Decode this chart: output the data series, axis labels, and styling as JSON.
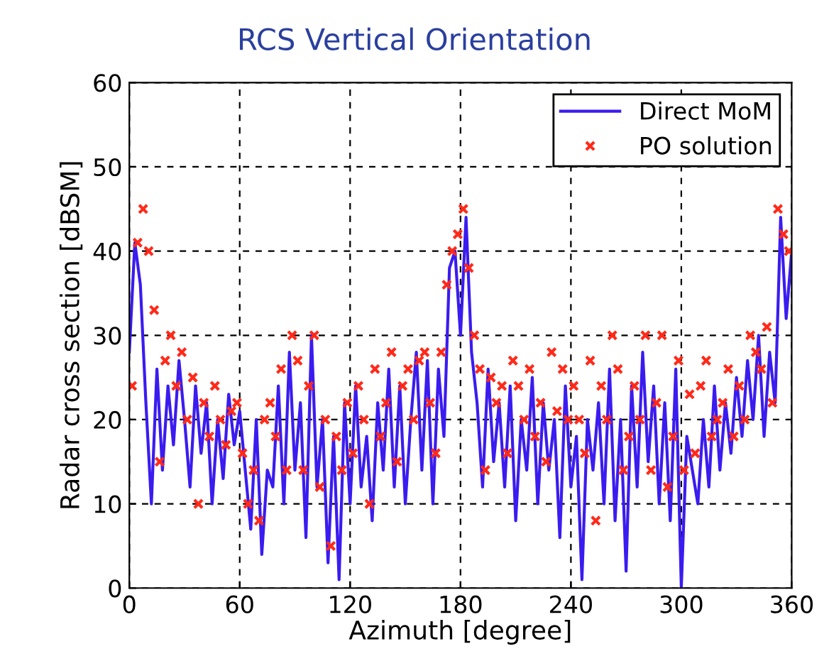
{
  "chart_data": {
    "type": "line",
    "title": "RCS Vertical Orientation",
    "xlabel": "Azimuth [degree]",
    "ylabel": "Radar cross section [dBSM]",
    "xlim": [
      0,
      360
    ],
    "xticks": [
      0,
      60,
      120,
      180,
      240,
      300,
      360
    ],
    "ylim": [
      0,
      60
    ],
    "yticks": [
      0,
      10,
      20,
      30,
      40,
      50,
      60
    ],
    "grid": true,
    "legend": "top right",
    "series": [
      {
        "name": "Direct MoM",
        "color": "#3a1cf0",
        "line_style": "solid",
        "x": [
          0,
          3,
          6,
          9,
          12,
          15,
          18,
          21,
          24,
          27,
          30,
          33,
          36,
          39,
          42,
          45,
          48,
          51,
          54,
          57,
          60,
          63,
          66,
          69,
          72,
          75,
          78,
          81,
          84,
          87,
          90,
          93,
          96,
          99,
          102,
          105,
          108,
          111,
          114,
          117,
          120,
          123,
          126,
          129,
          132,
          135,
          138,
          141,
          144,
          147,
          150,
          153,
          156,
          159,
          162,
          165,
          168,
          171,
          174,
          177,
          180,
          183,
          186,
          189,
          192,
          195,
          198,
          201,
          204,
          207,
          210,
          213,
          216,
          219,
          222,
          225,
          228,
          231,
          234,
          237,
          240,
          243,
          246,
          249,
          252,
          255,
          258,
          261,
          264,
          267,
          270,
          273,
          276,
          279,
          282,
          285,
          288,
          291,
          294,
          297,
          300,
          303,
          306,
          309,
          312,
          315,
          318,
          321,
          324,
          327,
          330,
          333,
          336,
          339,
          342,
          345,
          348,
          351,
          354,
          357,
          360
        ],
        "values": [
          28,
          41,
          36,
          22,
          10,
          26,
          14,
          24,
          17,
          27,
          20,
          12,
          24,
          16,
          22,
          10,
          20,
          13,
          23,
          17,
          21,
          14,
          7,
          20,
          4,
          14,
          12,
          24,
          10,
          28,
          14,
          22,
          6,
          30,
          12,
          20,
          3,
          18,
          1,
          22,
          10,
          24,
          12,
          18,
          8,
          22,
          14,
          26,
          12,
          24,
          10,
          20,
          28,
          14,
          27,
          10,
          26,
          18,
          38,
          40,
          30,
          44,
          28,
          22,
          12,
          26,
          15,
          22,
          12,
          24,
          8,
          20,
          14,
          25,
          10,
          22,
          14,
          20,
          6,
          24,
          12,
          18,
          1,
          20,
          14,
          22,
          10,
          26,
          8,
          20,
          2,
          24,
          12,
          28,
          15,
          24,
          10,
          22,
          8,
          26,
          0,
          18,
          14,
          10,
          20,
          12,
          24,
          14,
          22,
          16,
          25,
          18,
          27,
          20,
          30,
          18,
          28,
          22,
          44,
          32,
          40
        ]
      },
      {
        "name": "PO solution",
        "type": "scatter",
        "color": "#ff2a1a",
        "marker": "cross",
        "x": [
          1.5,
          4.5,
          7.5,
          10.5,
          13.5,
          16.5,
          19.5,
          22.5,
          25.5,
          28.5,
          31.5,
          34.5,
          37.5,
          40.5,
          43.5,
          46.5,
          49.5,
          52.5,
          55.5,
          58.5,
          61.5,
          64.5,
          67.5,
          70.5,
          73.5,
          76.5,
          79.5,
          82.5,
          85.5,
          88.5,
          91.5,
          94.5,
          97.5,
          100.5,
          103.5,
          106.5,
          109.5,
          112.5,
          115.5,
          118.5,
          121.5,
          124.5,
          127.5,
          130.5,
          133.5,
          136.5,
          139.5,
          142.5,
          145.5,
          148.5,
          151.5,
          154.5,
          157.5,
          160.5,
          163.5,
          166.5,
          169.5,
          172.5,
          175.5,
          178.5,
          181.5,
          184.5,
          187.5,
          190.5,
          193.5,
          196.5,
          199.5,
          202.5,
          205.5,
          208.5,
          211.5,
          214.5,
          217.5,
          220.5,
          223.5,
          226.5,
          229.5,
          232.5,
          235.5,
          238.5,
          241.5,
          244.5,
          247.5,
          250.5,
          253.5,
          256.5,
          259.5,
          262.5,
          265.5,
          268.5,
          271.5,
          274.5,
          277.5,
          280.5,
          283.5,
          286.5,
          289.5,
          292.5,
          295.5,
          298.5,
          301.5,
          304.5,
          307.5,
          310.5,
          313.5,
          316.5,
          319.5,
          322.5,
          325.5,
          328.5,
          331.5,
          334.5,
          337.5,
          340.5,
          343.5,
          346.5,
          349.5,
          352.5,
          355.5,
          358.5
        ],
        "values": [
          24,
          41,
          45,
          40,
          33,
          15,
          27,
          30,
          24,
          28,
          20,
          25,
          10,
          22,
          18,
          24,
          20,
          17,
          21,
          22,
          16,
          10,
          14,
          8,
          20,
          22,
          18,
          26,
          14,
          30,
          27,
          14,
          24,
          30,
          12,
          20,
          5,
          18,
          14,
          22,
          16,
          24,
          20,
          10,
          26,
          18,
          22,
          28,
          15,
          24,
          26,
          20,
          27,
          28,
          22,
          16,
          28,
          36,
          40,
          42,
          45,
          38,
          30,
          26,
          14,
          25,
          22,
          24,
          16,
          27,
          24,
          20,
          26,
          18,
          22,
          15,
          28,
          21,
          26,
          20,
          24,
          20,
          16,
          27,
          8,
          24,
          20,
          30,
          26,
          14,
          18,
          24,
          20,
          30,
          14,
          22,
          30,
          12,
          18,
          27,
          14,
          23,
          16,
          24,
          27,
          18,
          20,
          22,
          26,
          18,
          24,
          20,
          30,
          28,
          26,
          31,
          22,
          45,
          42,
          40
        ]
      }
    ]
  }
}
